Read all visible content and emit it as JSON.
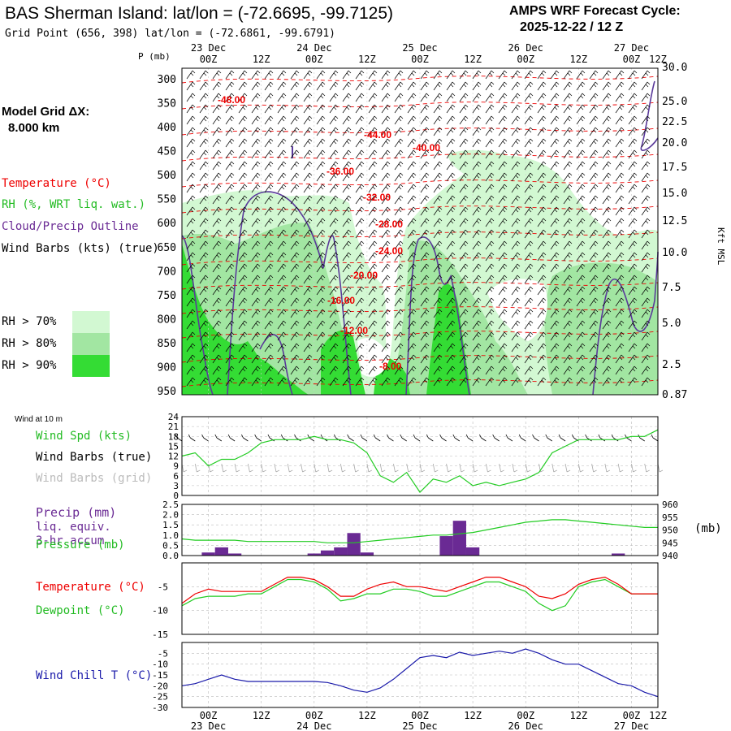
{
  "header": {
    "title": "BAS Sherman Island:  lat/lon = (-72.6695, -99.7125)",
    "subtitle": "Grid Point (656, 398) lat/lon = (-72.6861, -99.6791)",
    "cycle_line1": "AMPS WRF Forecast Cycle:",
    "cycle_line2": "2025-12-22 / 12  Z"
  },
  "time_axis": {
    "hour_labels": [
      "00Z",
      "12Z",
      "00Z",
      "12Z",
      "00Z",
      "12Z",
      "00Z",
      "12Z",
      "00Z",
      "12Z"
    ],
    "day_labels": [
      "23 Dec",
      "24 Dec",
      "25 Dec",
      "26 Dec",
      "27 Dec"
    ]
  },
  "upper_panel": {
    "p_label": "P (mb)",
    "pressure_levels": [
      "300",
      "350",
      "400",
      "450",
      "500",
      "550",
      "600",
      "650",
      "700",
      "750",
      "800",
      "850",
      "900",
      "950"
    ],
    "right_ticks": [
      "30.0",
      "25.0",
      "22.5",
      "20.0",
      "17.5",
      "15.0",
      "12.5",
      "10.0",
      "7.5",
      "5.0",
      "2.5",
      "0.87"
    ],
    "right_axis_label": "Kft MSL",
    "model_grid_line1": "Model Grid ΔX:",
    "model_grid_line2": "8.000 km",
    "legend": {
      "temperature": "Temperature (°C)",
      "rh": "RH (%, WRT liq. wat.)",
      "cloud": "Cloud/Precip Outline",
      "wind": "Wind Barbs (kts) (true)"
    },
    "rh_key": [
      "RH > 70%",
      "RH > 80%",
      "RH > 90%"
    ],
    "rh_colors": [
      "#d2f8d2",
      "#a2e6a2",
      "#34dc34"
    ],
    "temp_labels": [
      "-48.00",
      "-44.00",
      "-40.00",
      "-36.00",
      "-32.00",
      "-28.00",
      "-24.00",
      "-20.00",
      "-16.00",
      "-12.00",
      "-8.00"
    ]
  },
  "wind_panel": {
    "small_label": "Wind at 10 m",
    "label_speed": "Wind Spd (kts)",
    "label_barbs_true": "Wind Barbs (true)",
    "label_barbs_grid": "Wind Barbs (grid)",
    "y_ticks": [
      "24",
      "21",
      "18",
      "15",
      "12",
      "9",
      "6",
      "3",
      "0"
    ]
  },
  "precip_panel": {
    "label_precip": "Precip (mm)",
    "label_liq": "liq. equiv.",
    "label_accum": "3-hr accum",
    "label_pressure": "Pressure (mb)",
    "left_ticks": [
      "2.5",
      "2.0",
      "1.5",
      "1.0",
      "0.5",
      "0.0"
    ],
    "right_ticks": [
      "960",
      "955",
      "950",
      "945",
      "940"
    ],
    "right_unit": "(mb)"
  },
  "temp_panel": {
    "label_temp": "Temperature (°C)",
    "label_dew": "Dewpoint (°C)",
    "y_ticks": [
      "-5",
      "-10",
      "-15"
    ]
  },
  "chill_panel": {
    "label": "Wind Chill T (°C)",
    "y_ticks": [
      "-5",
      "-10",
      "-15",
      "-20",
      "-25",
      "-30"
    ]
  },
  "colors": {
    "temperature": "#ee0000",
    "dewpoint": "#22cc22",
    "precip": "#6a2a94",
    "cloud_outline": "#5a3a9a",
    "wind_chill": "#1a1aaa",
    "grid": "#bbbbbb"
  },
  "chart_data": [
    {
      "type": "line",
      "title": "Wind Spd (kts)",
      "x": [
        0,
        3,
        6,
        9,
        12,
        15,
        18,
        21,
        24,
        27,
        30,
        33,
        36,
        39,
        42,
        45,
        48,
        51,
        54,
        57,
        60,
        63,
        66,
        69,
        72,
        75,
        78,
        81,
        84,
        87,
        90,
        93,
        96,
        99,
        102,
        105,
        108
      ],
      "series": [
        {
          "name": "Wind Spd (kts)",
          "values": [
            12,
            13,
            9,
            11,
            11,
            13,
            16,
            17,
            17,
            17,
            18,
            17,
            17,
            16,
            13,
            6,
            4,
            7,
            1,
            5,
            4,
            6,
            3,
            4,
            3,
            4,
            5,
            7,
            13,
            15,
            17,
            17,
            17,
            17,
            18,
            18,
            20
          ]
        }
      ],
      "ylim": [
        0,
        24
      ]
    },
    {
      "type": "bar",
      "title": "Precip (mm) liq. equiv. 3-hr accum",
      "x": [
        0,
        3,
        6,
        9,
        12,
        15,
        18,
        21,
        24,
        27,
        30,
        33,
        36,
        39,
        42,
        45,
        48,
        51,
        54,
        57,
        60,
        63,
        66,
        69,
        72,
        75,
        78,
        81,
        84,
        87,
        90,
        93,
        96,
        99,
        102,
        105,
        108
      ],
      "series": [
        {
          "name": "Precip (mm)",
          "values": [
            0,
            0,
            0.15,
            0.4,
            0.1,
            0,
            0,
            0,
            0,
            0,
            0.1,
            0.25,
            0.4,
            1.1,
            0.15,
            0,
            0,
            0,
            0,
            0,
            0.95,
            1.7,
            0.4,
            0,
            0,
            0,
            0,
            0,
            0,
            0,
            0,
            0,
            0,
            0.1,
            0,
            0,
            0
          ]
        }
      ],
      "ylim": [
        0,
        2.5
      ]
    },
    {
      "type": "line",
      "title": "Pressure (mb)",
      "x": [
        0,
        3,
        6,
        9,
        12,
        15,
        18,
        21,
        24,
        27,
        30,
        33,
        36,
        39,
        42,
        45,
        48,
        51,
        54,
        57,
        60,
        63,
        66,
        69,
        72,
        75,
        78,
        81,
        84,
        87,
        90,
        93,
        96,
        99,
        102,
        105,
        108
      ],
      "series": [
        {
          "name": "Pressure (mb)",
          "values": [
            946.5,
            946,
            946,
            946,
            946,
            945.5,
            945.5,
            945.5,
            945.5,
            945.5,
            945.5,
            945,
            945,
            945,
            945.5,
            946,
            946.5,
            947,
            947.5,
            948,
            948,
            948.5,
            949,
            950,
            951,
            952,
            953,
            953.5,
            954,
            954,
            953.5,
            953,
            952.5,
            952,
            951.5,
            951,
            951
          ]
        }
      ],
      "ylim": [
        940,
        960
      ]
    },
    {
      "type": "line",
      "title": "Temperature / Dewpoint (°C)",
      "x": [
        0,
        3,
        6,
        9,
        12,
        15,
        18,
        21,
        24,
        27,
        30,
        33,
        36,
        39,
        42,
        45,
        48,
        51,
        54,
        57,
        60,
        63,
        66,
        69,
        72,
        75,
        78,
        81,
        84,
        87,
        90,
        93,
        96,
        99,
        102,
        105,
        108
      ],
      "series": [
        {
          "name": "Temperature (°C)",
          "values": [
            -8.5,
            -6.5,
            -5.5,
            -6,
            -6,
            -6,
            -6,
            -4.5,
            -3,
            -3,
            -3.5,
            -5,
            -7,
            -7,
            -5.5,
            -4.5,
            -4,
            -5,
            -5,
            -5.5,
            -6,
            -5,
            -4,
            -3,
            -3,
            -4,
            -5,
            -7,
            -7.5,
            -6.5,
            -4.5,
            -3.5,
            -3,
            -4.5,
            -6.5,
            -6.5,
            -6.5
          ]
        },
        {
          "name": "Dewpoint (°C)",
          "values": [
            -9,
            -7.5,
            -7,
            -7,
            -7,
            -6.5,
            -6.5,
            -5,
            -3.5,
            -3.5,
            -4,
            -5.5,
            -8,
            -7.5,
            -6.5,
            -6.5,
            -5.5,
            -5.5,
            -6,
            -7,
            -7,
            -6,
            -5,
            -4,
            -4,
            -5,
            -6,
            -8.5,
            -10,
            -9,
            -5,
            -4,
            -3.5,
            -5,
            -6.5,
            -6.5,
            -6.5
          ]
        }
      ],
      "ylim": [
        -15,
        0
      ]
    },
    {
      "type": "line",
      "title": "Wind Chill T (°C)",
      "x": [
        0,
        3,
        6,
        9,
        12,
        15,
        18,
        21,
        24,
        27,
        30,
        33,
        36,
        39,
        42,
        45,
        48,
        51,
        54,
        57,
        60,
        63,
        66,
        69,
        72,
        75,
        78,
        81,
        84,
        87,
        90,
        93,
        96,
        99,
        102,
        105,
        108
      ],
      "series": [
        {
          "name": "Wind Chill T (°C)",
          "values": [
            -20,
            -19,
            -17,
            -15,
            -17,
            -18,
            -18,
            -18,
            -18,
            -18,
            -18,
            -18.5,
            -20,
            -22,
            -23,
            -21,
            -17,
            -12,
            -7,
            -6,
            -7,
            -4.5,
            -6,
            -5,
            -4,
            -5,
            -3,
            -5,
            -8,
            -10,
            -10,
            -13,
            -16,
            -19,
            -20,
            -23,
            -25
          ]
        }
      ],
      "ylim": [
        -30,
        0
      ]
    }
  ]
}
